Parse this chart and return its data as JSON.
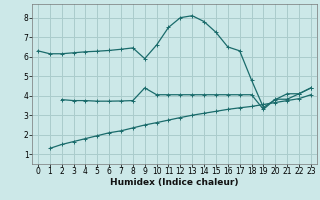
{
  "background_color": "#cce8e8",
  "grid_color": "#aacccc",
  "line_color": "#1a6b6b",
  "xlabel": "Humidex (Indice chaleur)",
  "xlim": [
    -0.5,
    23.5
  ],
  "ylim": [
    0.5,
    8.7
  ],
  "xticks": [
    0,
    1,
    2,
    3,
    4,
    5,
    6,
    7,
    8,
    9,
    10,
    11,
    12,
    13,
    14,
    15,
    16,
    17,
    18,
    19,
    20,
    21,
    22,
    23
  ],
  "yticks": [
    1,
    2,
    3,
    4,
    5,
    6,
    7,
    8
  ],
  "curve1_x": [
    0,
    1,
    2,
    3,
    4,
    5,
    6,
    7,
    8,
    9,
    10,
    11,
    12,
    13,
    14,
    15,
    16,
    17,
    18,
    19,
    20,
    21,
    22,
    23
  ],
  "curve1_y": [
    6.3,
    6.15,
    6.15,
    6.2,
    6.25,
    6.28,
    6.32,
    6.38,
    6.45,
    5.9,
    6.6,
    7.5,
    8.0,
    8.1,
    7.8,
    7.25,
    6.5,
    6.3,
    4.8,
    3.4,
    3.8,
    4.1,
    4.1,
    4.4
  ],
  "curve2_x": [
    2,
    3,
    4,
    5,
    6,
    7,
    8,
    9,
    10,
    11,
    12,
    13,
    14,
    15,
    16,
    17,
    18,
    19,
    20,
    21,
    22,
    23
  ],
  "curve2_y": [
    3.8,
    3.75,
    3.75,
    3.72,
    3.72,
    3.73,
    3.75,
    4.4,
    4.05,
    4.05,
    4.05,
    4.05,
    4.05,
    4.05,
    4.05,
    4.05,
    4.05,
    3.3,
    3.82,
    3.82,
    4.1,
    4.4
  ],
  "curve3_x": [
    1,
    2,
    3,
    4,
    5,
    6,
    7,
    8,
    9,
    10,
    11,
    12,
    13,
    14,
    15,
    16,
    17,
    18,
    19,
    20,
    21,
    22,
    23
  ],
  "curve3_y": [
    1.3,
    1.5,
    1.65,
    1.8,
    1.95,
    2.1,
    2.2,
    2.35,
    2.5,
    2.62,
    2.75,
    2.88,
    3.0,
    3.1,
    3.2,
    3.3,
    3.38,
    3.45,
    3.55,
    3.65,
    3.75,
    3.85,
    4.05
  ],
  "tick_fontsize": 5.5,
  "xlabel_fontsize": 6.5
}
